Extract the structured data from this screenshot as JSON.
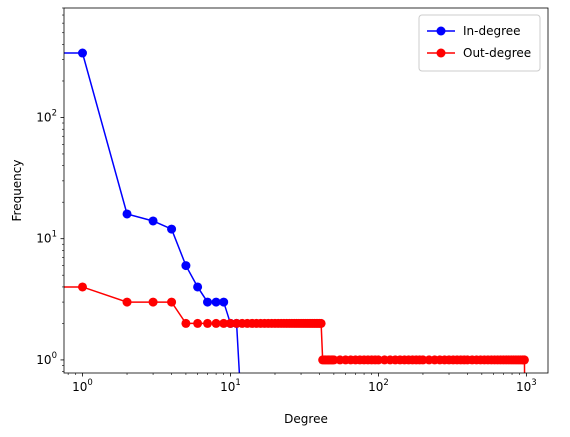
{
  "chart_data": {
    "type": "line",
    "xlabel": "Degree",
    "ylabel": "Frequency",
    "xscale": "log",
    "yscale": "log",
    "xlim": [
      0.75,
      1400
    ],
    "ylim": [
      0.78,
      800
    ],
    "x_ticks": [
      {
        "value": 1,
        "base": "10",
        "exp": "0"
      },
      {
        "value": 10,
        "base": "10",
        "exp": "1"
      },
      {
        "value": 100,
        "base": "10",
        "exp": "2"
      },
      {
        "value": 1000,
        "base": "10",
        "exp": "3"
      }
    ],
    "y_ticks": [
      {
        "value": 1,
        "base": "10",
        "exp": "0"
      },
      {
        "value": 10,
        "base": "10",
        "exp": "1"
      },
      {
        "value": 100,
        "base": "10",
        "exp": "2"
      }
    ],
    "grid": false,
    "legend_position": "top-right",
    "series": [
      {
        "name": "In-degree",
        "color": "#0000ff",
        "marker": "circle",
        "points": [
          [
            0,
            340
          ],
          [
            1,
            340
          ],
          [
            2,
            16
          ],
          [
            3,
            14
          ],
          [
            4,
            12
          ],
          [
            5,
            6
          ],
          [
            6,
            4
          ],
          [
            7,
            3
          ],
          [
            8,
            3
          ],
          [
            9,
            3
          ],
          [
            10,
            2
          ],
          [
            11,
            2
          ],
          [
            12,
            0
          ]
        ]
      },
      {
        "name": "Out-degree",
        "color": "#ff0000",
        "marker": "circle",
        "points": [
          [
            0,
            4
          ],
          [
            1,
            4
          ],
          [
            2,
            3
          ],
          [
            3,
            3
          ],
          [
            4,
            3
          ],
          [
            5,
            2
          ],
          [
            6,
            2
          ],
          [
            7,
            2
          ],
          [
            8,
            2
          ],
          [
            9,
            2
          ],
          [
            10,
            2
          ],
          [
            11,
            2
          ],
          [
            12,
            2
          ],
          [
            13,
            2
          ],
          [
            14,
            2
          ],
          [
            15,
            2
          ],
          [
            16,
            2
          ],
          [
            17,
            2
          ],
          [
            18,
            2
          ],
          [
            19,
            2
          ],
          [
            20,
            2
          ],
          [
            21,
            2
          ],
          [
            22,
            2
          ],
          [
            23,
            2
          ],
          [
            24,
            2
          ],
          [
            25,
            2
          ],
          [
            26,
            2
          ],
          [
            27,
            2
          ],
          [
            28,
            2
          ],
          [
            29,
            2
          ],
          [
            30,
            2
          ],
          [
            31,
            2
          ],
          [
            32,
            2
          ],
          [
            33,
            2
          ],
          [
            34,
            2
          ],
          [
            35,
            2
          ],
          [
            36,
            2
          ],
          [
            37,
            2
          ],
          [
            38,
            2
          ],
          [
            39,
            2
          ],
          [
            40,
            2
          ],
          [
            41,
            2
          ],
          [
            42,
            1
          ],
          [
            43,
            1
          ],
          [
            44,
            1
          ],
          [
            45,
            1
          ],
          [
            46,
            1
          ],
          [
            47,
            1
          ],
          [
            48,
            1
          ],
          [
            49,
            1
          ],
          [
            50,
            1
          ],
          [
            55,
            1
          ],
          [
            60,
            1
          ],
          [
            65,
            1
          ],
          [
            70,
            1
          ],
          [
            75,
            1
          ],
          [
            80,
            1
          ],
          [
            85,
            1
          ],
          [
            90,
            1
          ],
          [
            95,
            1
          ],
          [
            100,
            1
          ],
          [
            110,
            1
          ],
          [
            120,
            1
          ],
          [
            130,
            1
          ],
          [
            140,
            1
          ],
          [
            150,
            1
          ],
          [
            160,
            1
          ],
          [
            170,
            1
          ],
          [
            180,
            1
          ],
          [
            190,
            1
          ],
          [
            200,
            1
          ],
          [
            220,
            1
          ],
          [
            240,
            1
          ],
          [
            260,
            1
          ],
          [
            280,
            1
          ],
          [
            300,
            1
          ],
          [
            320,
            1
          ],
          [
            340,
            1
          ],
          [
            360,
            1
          ],
          [
            380,
            1
          ],
          [
            400,
            1
          ],
          [
            430,
            1
          ],
          [
            460,
            1
          ],
          [
            490,
            1
          ],
          [
            520,
            1
          ],
          [
            550,
            1
          ],
          [
            580,
            1
          ],
          [
            610,
            1
          ],
          [
            640,
            1
          ],
          [
            670,
            1
          ],
          [
            700,
            1
          ],
          [
            730,
            1
          ],
          [
            760,
            1
          ],
          [
            790,
            1
          ],
          [
            820,
            1
          ],
          [
            850,
            1
          ],
          [
            880,
            1
          ],
          [
            910,
            1
          ],
          [
            940,
            1
          ],
          [
            960,
            1
          ],
          [
            970,
            1
          ],
          [
            980,
            0
          ]
        ]
      }
    ]
  }
}
